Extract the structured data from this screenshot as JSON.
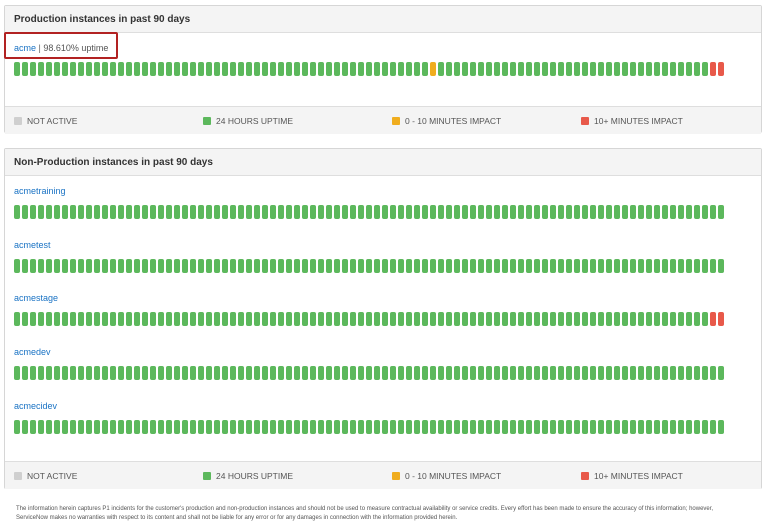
{
  "colors": {
    "not_active": "#cfcfcf",
    "uptime": "#5cb85c",
    "minor_impact": "#f0ad1e",
    "major_impact": "#e8594a",
    "link": "#1a73c4"
  },
  "legend": {
    "not_active": "NOT ACTIVE",
    "uptime": "24 HOURS UPTIME",
    "minor": "0 - 10 MINUTES IMPACT",
    "major": "10+ MINUTES IMPACT"
  },
  "production": {
    "title": "Production instances in past 90 days",
    "instances": [
      {
        "name": "acme",
        "separator": "|",
        "uptime_text": "98.610% uptime",
        "days": [
          "g",
          "g",
          "g",
          "g",
          "g",
          "g",
          "g",
          "g",
          "g",
          "g",
          "g",
          "g",
          "g",
          "g",
          "g",
          "g",
          "g",
          "g",
          "g",
          "g",
          "g",
          "g",
          "g",
          "g",
          "g",
          "g",
          "g",
          "g",
          "g",
          "g",
          "g",
          "g",
          "g",
          "g",
          "g",
          "g",
          "g",
          "g",
          "g",
          "g",
          "g",
          "g",
          "g",
          "g",
          "g",
          "g",
          "g",
          "g",
          "g",
          "g",
          "g",
          "g",
          "y",
          "g",
          "g",
          "g",
          "g",
          "g",
          "g",
          "g",
          "g",
          "g",
          "g",
          "g",
          "g",
          "g",
          "g",
          "g",
          "g",
          "g",
          "g",
          "g",
          "g",
          "g",
          "g",
          "g",
          "g",
          "g",
          "g",
          "g",
          "g",
          "g",
          "g",
          "g",
          "g",
          "g",
          "g",
          "r",
          "r"
        ]
      }
    ]
  },
  "non_production": {
    "title": "Non-Production instances in past 90 days",
    "instances": [
      {
        "name": "acmetraining",
        "days": [
          "g",
          "g",
          "g",
          "g",
          "g",
          "g",
          "g",
          "g",
          "g",
          "g",
          "g",
          "g",
          "g",
          "g",
          "g",
          "g",
          "g",
          "g",
          "g",
          "g",
          "g",
          "g",
          "g",
          "g",
          "g",
          "g",
          "g",
          "g",
          "g",
          "g",
          "g",
          "g",
          "g",
          "g",
          "g",
          "g",
          "g",
          "g",
          "g",
          "g",
          "g",
          "g",
          "g",
          "g",
          "g",
          "g",
          "g",
          "g",
          "g",
          "g",
          "g",
          "g",
          "g",
          "g",
          "g",
          "g",
          "g",
          "g",
          "g",
          "g",
          "g",
          "g",
          "g",
          "g",
          "g",
          "g",
          "g",
          "g",
          "g",
          "g",
          "g",
          "g",
          "g",
          "g",
          "g",
          "g",
          "g",
          "g",
          "g",
          "g",
          "g",
          "g",
          "g",
          "g",
          "g",
          "g",
          "g",
          "g",
          "g"
        ]
      },
      {
        "name": "acmetest",
        "days": [
          "g",
          "g",
          "g",
          "g",
          "g",
          "g",
          "g",
          "g",
          "g",
          "g",
          "g",
          "g",
          "g",
          "g",
          "g",
          "g",
          "g",
          "g",
          "g",
          "g",
          "g",
          "g",
          "g",
          "g",
          "g",
          "g",
          "g",
          "g",
          "g",
          "g",
          "g",
          "g",
          "g",
          "g",
          "g",
          "g",
          "g",
          "g",
          "g",
          "g",
          "g",
          "g",
          "g",
          "g",
          "g",
          "g",
          "g",
          "g",
          "g",
          "g",
          "g",
          "g",
          "g",
          "g",
          "g",
          "g",
          "g",
          "g",
          "g",
          "g",
          "g",
          "g",
          "g",
          "g",
          "g",
          "g",
          "g",
          "g",
          "g",
          "g",
          "g",
          "g",
          "g",
          "g",
          "g",
          "g",
          "g",
          "g",
          "g",
          "g",
          "g",
          "g",
          "g",
          "g",
          "g",
          "g",
          "g",
          "g",
          "g"
        ]
      },
      {
        "name": "acmestage",
        "days": [
          "g",
          "g",
          "g",
          "g",
          "g",
          "g",
          "g",
          "g",
          "g",
          "g",
          "g",
          "g",
          "g",
          "g",
          "g",
          "g",
          "g",
          "g",
          "g",
          "g",
          "g",
          "g",
          "g",
          "g",
          "g",
          "g",
          "g",
          "g",
          "g",
          "g",
          "g",
          "g",
          "g",
          "g",
          "g",
          "g",
          "g",
          "g",
          "g",
          "g",
          "g",
          "g",
          "g",
          "g",
          "g",
          "g",
          "g",
          "g",
          "g",
          "g",
          "g",
          "g",
          "g",
          "g",
          "g",
          "g",
          "g",
          "g",
          "g",
          "g",
          "g",
          "g",
          "g",
          "g",
          "g",
          "g",
          "g",
          "g",
          "g",
          "g",
          "g",
          "g",
          "g",
          "g",
          "g",
          "g",
          "g",
          "g",
          "g",
          "g",
          "g",
          "g",
          "g",
          "g",
          "g",
          "g",
          "g",
          "r",
          "r"
        ]
      },
      {
        "name": "acmedev",
        "days": [
          "g",
          "g",
          "g",
          "g",
          "g",
          "g",
          "g",
          "g",
          "g",
          "g",
          "g",
          "g",
          "g",
          "g",
          "g",
          "g",
          "g",
          "g",
          "g",
          "g",
          "g",
          "g",
          "g",
          "g",
          "g",
          "g",
          "g",
          "g",
          "g",
          "g",
          "g",
          "g",
          "g",
          "g",
          "g",
          "g",
          "g",
          "g",
          "g",
          "g",
          "g",
          "g",
          "g",
          "g",
          "g",
          "g",
          "g",
          "g",
          "g",
          "g",
          "g",
          "g",
          "g",
          "g",
          "g",
          "g",
          "g",
          "g",
          "g",
          "g",
          "g",
          "g",
          "g",
          "g",
          "g",
          "g",
          "g",
          "g",
          "g",
          "g",
          "g",
          "g",
          "g",
          "g",
          "g",
          "g",
          "g",
          "g",
          "g",
          "g",
          "g",
          "g",
          "g",
          "g",
          "g",
          "g",
          "g",
          "g",
          "g"
        ]
      },
      {
        "name": "acmecidev",
        "days": [
          "g",
          "g",
          "g",
          "g",
          "g",
          "g",
          "g",
          "g",
          "g",
          "g",
          "g",
          "g",
          "g",
          "g",
          "g",
          "g",
          "g",
          "g",
          "g",
          "g",
          "g",
          "g",
          "g",
          "g",
          "g",
          "g",
          "g",
          "g",
          "g",
          "g",
          "g",
          "g",
          "g",
          "g",
          "g",
          "g",
          "g",
          "g",
          "g",
          "g",
          "g",
          "g",
          "g",
          "g",
          "g",
          "g",
          "g",
          "g",
          "g",
          "g",
          "g",
          "g",
          "g",
          "g",
          "g",
          "g",
          "g",
          "g",
          "g",
          "g",
          "g",
          "g",
          "g",
          "g",
          "g",
          "g",
          "g",
          "g",
          "g",
          "g",
          "g",
          "g",
          "g",
          "g",
          "g",
          "g",
          "g",
          "g",
          "g",
          "g",
          "g",
          "g",
          "g",
          "g",
          "g",
          "g",
          "g",
          "g",
          "g"
        ]
      }
    ]
  },
  "footer": {
    "line1": "The information herein captures P1 incidents for the customer's production and non-production instances and should not be used to measure contractual availability or service credits. Every effort has been made to ensure the accuracy of this information; however,",
    "line2": "ServiceNow makes no warranties with respect to its content and shall not be liable for any error or for any damages in connection with the information provided herein."
  }
}
